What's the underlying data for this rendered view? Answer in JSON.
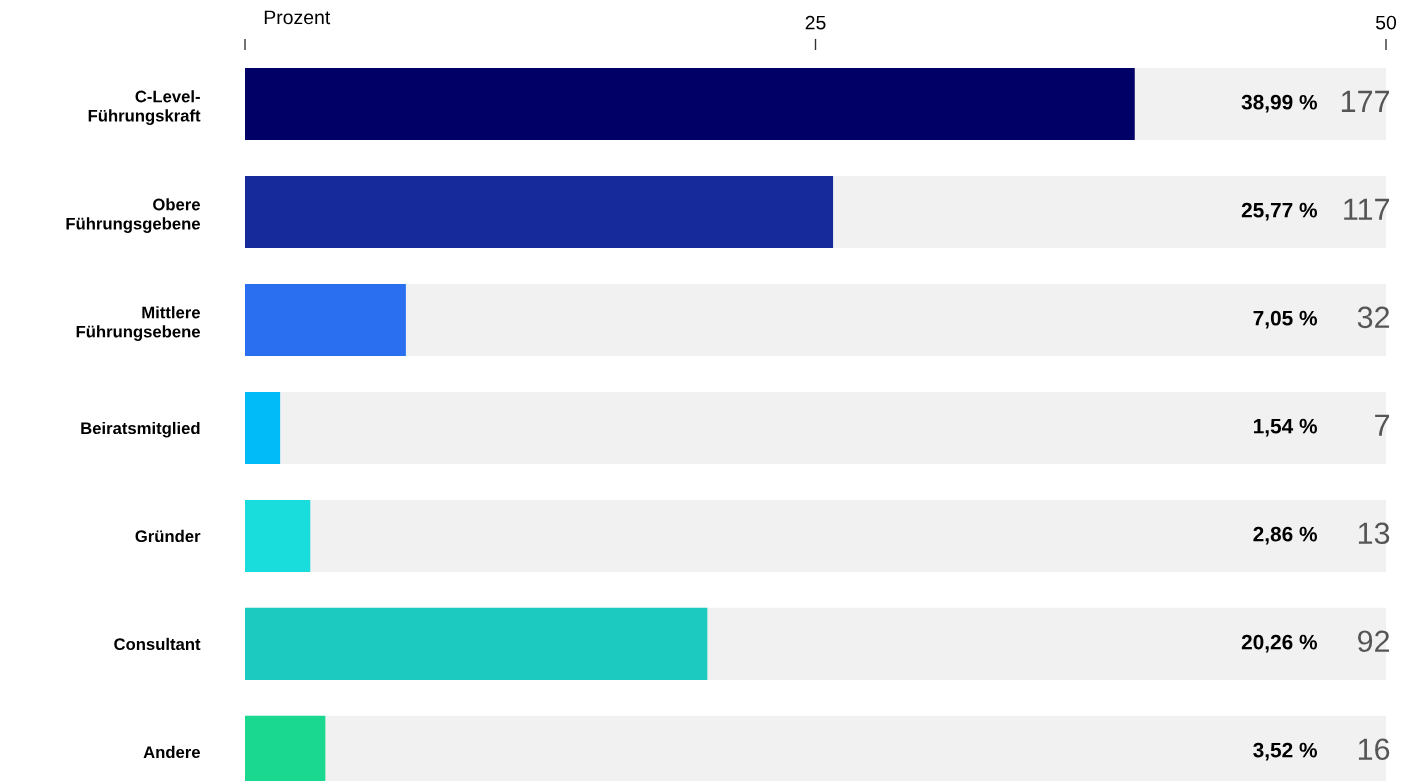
{
  "chart_data": {
    "type": "bar",
    "orientation": "horizontal",
    "categories": [
      "C-Level-\nFührungskraft",
      "Obere\nFührungsgebene",
      "Mittlere\nFührungsebene",
      "Beiratsmitglied",
      "Gründer",
      "Consultant",
      "Andere"
    ],
    "values": [
      38.99,
      25.77,
      7.05,
      1.54,
      2.86,
      20.26,
      3.52
    ],
    "colors": [
      "#000066",
      "#172a9c",
      "#2a6ff0",
      "#00bbf7",
      "#19dcdc",
      "#1ccac0",
      "#1ad88f"
    ],
    "value_labels": [
      "38,99 %",
      "25,77 %",
      "7,05 %",
      "1,54 %",
      "2,86 %",
      "20,26 %",
      "3,52 %"
    ],
    "annotations": [
      "177",
      "117",
      "32",
      "7",
      "13",
      "92",
      "16"
    ],
    "xlim": [
      0,
      50
    ],
    "xlabel": "Prozent",
    "xticks": [
      {
        "value": 0,
        "label": null
      },
      25,
      50
    ],
    "grid": false,
    "legend": false
  }
}
